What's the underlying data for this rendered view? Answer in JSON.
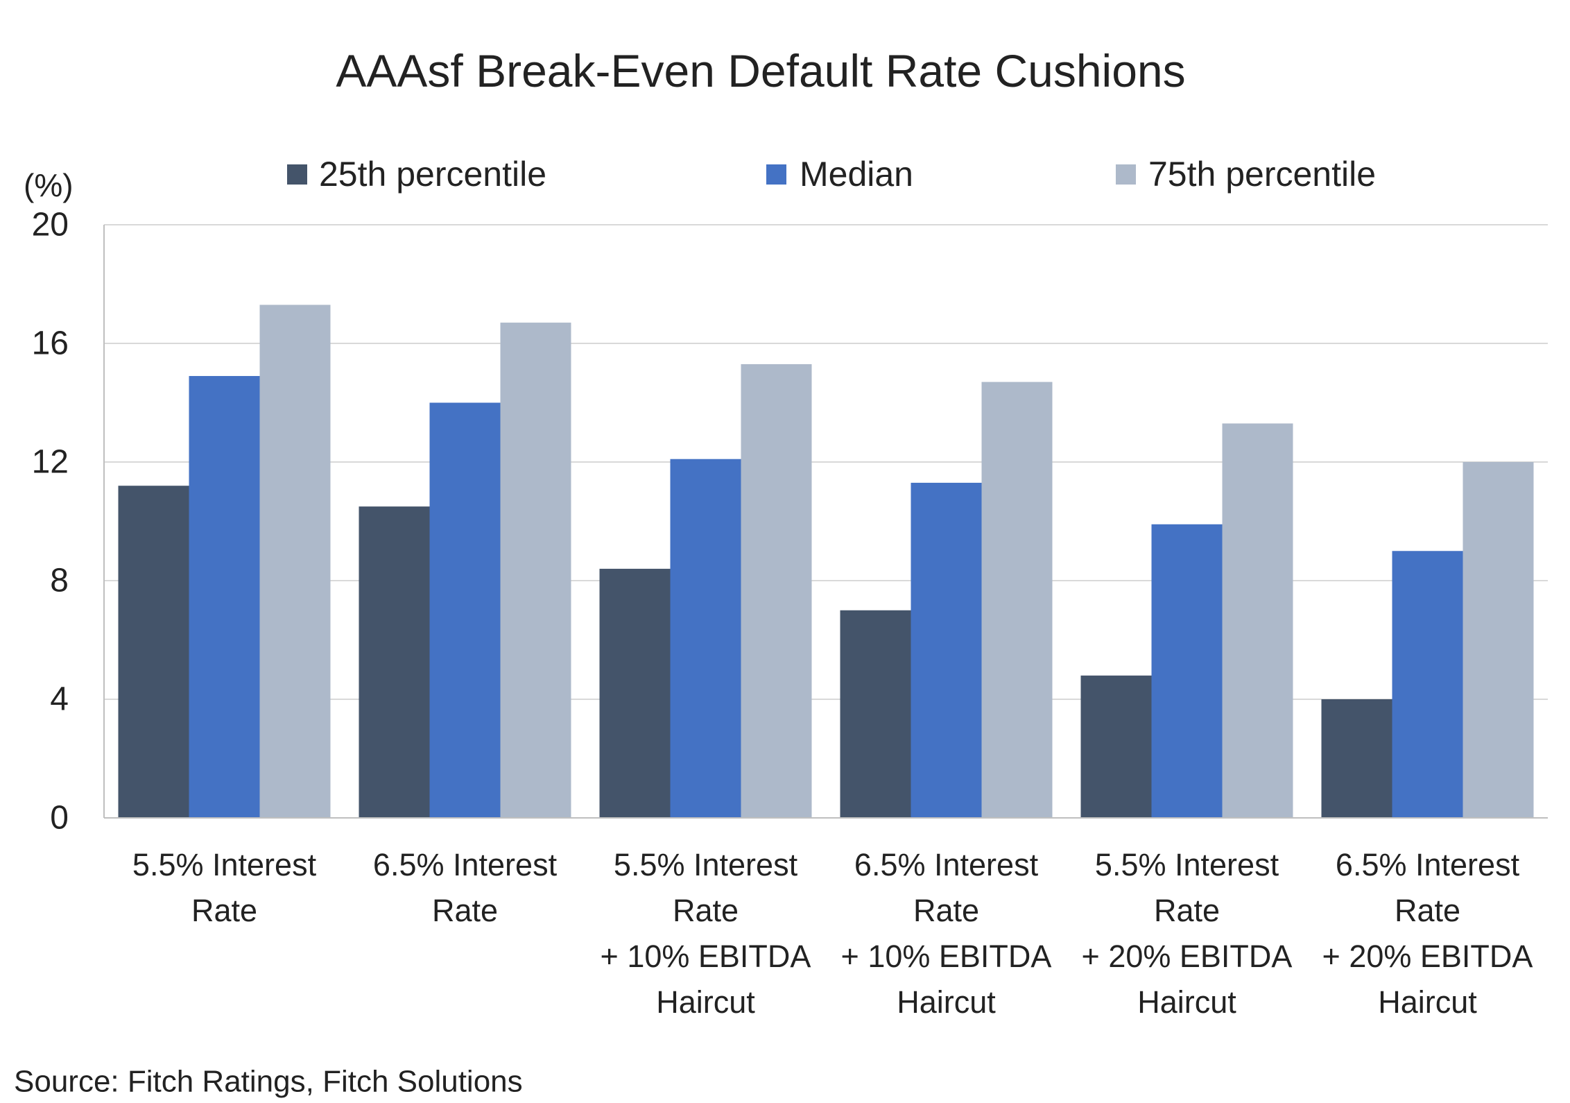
{
  "source": "Source: Fitch Ratings, Fitch Solutions",
  "chart_data": {
    "type": "bar",
    "title": "AAAsf Break-Even Default Rate Cushions",
    "xlabel": "",
    "ylabel": "(%)",
    "ylim": [
      0,
      20
    ],
    "yticks": [
      0,
      4,
      8,
      12,
      16,
      20
    ],
    "grid": true,
    "legend_position": "top",
    "categories": [
      "5.5% Interest Rate",
      "6.5% Interest Rate",
      "5.5% Interest Rate + 10% EBITDA Haircut",
      "6.5% Interest Rate + 10% EBITDA Haircut",
      "5.5% Interest Rate + 20% EBITDA Haircut",
      "6.5% Interest Rate + 20% EBITDA Haircut"
    ],
    "series": [
      {
        "name": "25th percentile",
        "color": "#44546A",
        "values": [
          11.2,
          10.5,
          8.4,
          7.0,
          4.8,
          4.0
        ]
      },
      {
        "name": "Median",
        "color": "#4472C4",
        "values": [
          14.9,
          14.0,
          12.1,
          11.3,
          9.9,
          9.0
        ]
      },
      {
        "name": "75th percentile",
        "color": "#ADB9CA",
        "values": [
          17.3,
          16.7,
          15.3,
          14.7,
          13.3,
          12.0
        ]
      }
    ]
  }
}
